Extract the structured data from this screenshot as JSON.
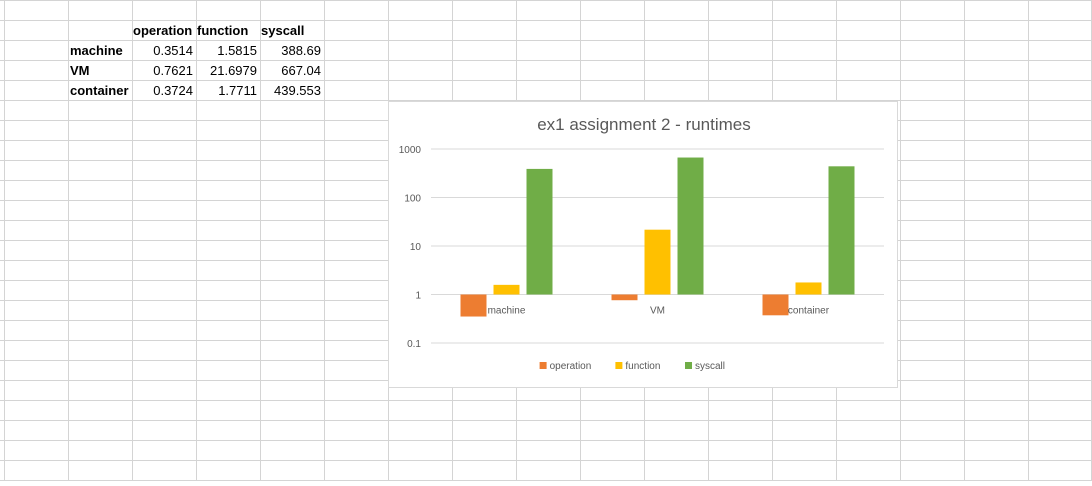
{
  "table": {
    "columns": [
      "operation",
      "function",
      "syscall"
    ],
    "rows": [
      {
        "label": "machine",
        "values": [
          "0.3514",
          "1.5815",
          "388.69"
        ]
      },
      {
        "label": "VM",
        "values": [
          "0.7621",
          "21.6979",
          "667.04"
        ]
      },
      {
        "label": "container",
        "values": [
          "0.3724",
          "1.7711",
          "439.553"
        ]
      }
    ]
  },
  "chart_data": {
    "type": "bar",
    "title": "ex1 assignment 2 - runtimes",
    "categories": [
      "machine",
      "VM",
      "container"
    ],
    "series": [
      {
        "name": "operation",
        "values": [
          0.3514,
          0.7621,
          0.3724
        ],
        "color": "#ED7D31"
      },
      {
        "name": "function",
        "values": [
          1.5815,
          21.6979,
          1.7711
        ],
        "color": "#FFC000"
      },
      {
        "name": "syscall",
        "values": [
          388.69,
          667.04,
          439.553
        ],
        "color": "#70AD47"
      }
    ],
    "ylim": [
      0.1,
      1000
    ],
    "yscale": "log",
    "yticks": [
      "0.1",
      "1",
      "10",
      "100",
      "1000"
    ],
    "grid": true,
    "legend": "bottom"
  }
}
